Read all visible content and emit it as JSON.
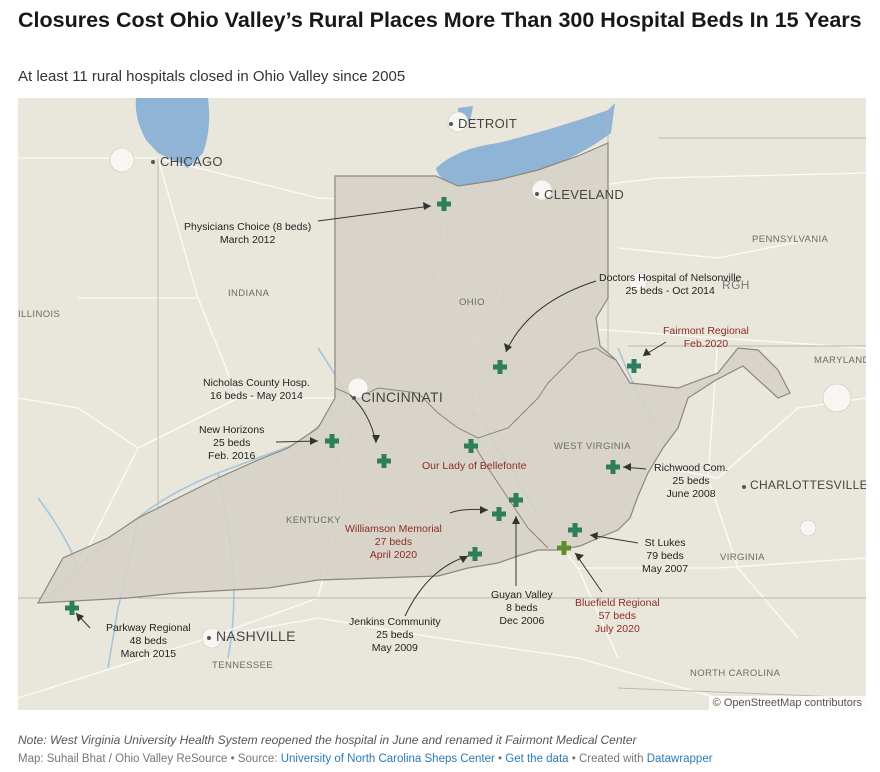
{
  "title": "Closures Cost Ohio Valley’s Rural Places More Than 300 Hospital Beds In 15 Years",
  "subtitle": "At least 11 rural hospitals closed in Ohio Valley since 2005",
  "colors": {
    "land": "#e9e7dc",
    "water": "#8fb4d6",
    "region": "#d6d2c7",
    "marker_closed": "#2e7d5b",
    "marker_reopened": "#5c8f2e",
    "reopened_label": "#8e2c22"
  },
  "map": {
    "cities": {
      "detroit": "DETROIT",
      "chicago": "CHICAGO",
      "cleveland": "CLEVELAND",
      "cincinnati": "CINCINNATI",
      "nashville": "NASHVILLE",
      "charlottesville": "CHARLOTTESVILLE"
    },
    "regions": {
      "indiana": "INDIANA",
      "illinois": "ILLINOIS",
      "ohio": "OHIO",
      "pennsylvania": "PENNSYLVANIA",
      "maryland": "MARYLAND",
      "west_virginia": "WEST VIRGINIA",
      "kentucky": "KENTUCKY",
      "virginia": "VIRGINIA",
      "tennessee": "TENNESSEE",
      "north_carolina": "NORTH CAROLINA",
      "pittsburgh_partial": "RGH"
    },
    "hospitals": {
      "physicians_choice": "Physicians Choice (8 beds)\nMarch 2012",
      "doctors_nelsonville": "Doctors Hospital of Nelsonville\n25 beds - Oct 2014",
      "fairmont": "Fairmont Regional\nFeb.2020",
      "nicholas_county": "Nicholas County Hosp.\n16 beds - May 2014",
      "new_horizons": "New Horizons\n25 beds\nFeb. 2016",
      "our_lady": "Our Lady of Bellefonte",
      "richwood": "Richwood Com.\n25 beds\nJune 2008",
      "williamson": "Williamson Memorial\n27 beds\nApril 2020",
      "st_lukes": "St Lukes\n79 beds\nMay 2007",
      "jenkins": "Jenkins Community\n25 beds\nMay 2009",
      "guyan_valley": "Guyan Valley\n8 beds\nDec 2006",
      "bluefield": "Bluefield Regional\n57 beds\nJuly 2020",
      "parkway": "Parkway Regional\n48 beds\nMarch 2015"
    },
    "attribution": "© OpenStreetMap contributors"
  },
  "footer": {
    "note": "Note: West Virginia University Health System reopened the hospital in June and renamed it Fairmont Medical Center",
    "credit_prefix": "Map: Suhail Bhat / Ohio Valley ReSource • Source: ",
    "source_link": "University of North Carolina Sheps Center",
    "separator": " • ",
    "data_link": "Get the data",
    "created_with": " • Created with ",
    "tool_link": "Datawrapper"
  }
}
